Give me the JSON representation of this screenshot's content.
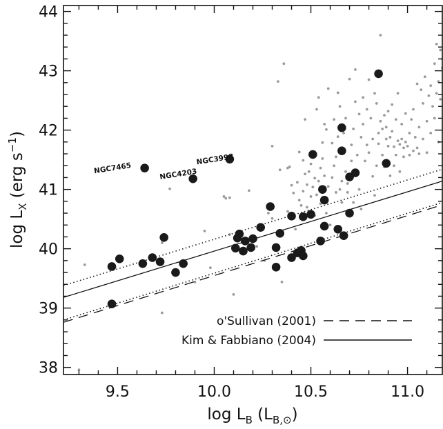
{
  "chart_data": {
    "type": "scatter",
    "xlim": [
      9.22,
      11.18
    ],
    "ylim": [
      37.88,
      44.1
    ],
    "xticks": [
      9.5,
      10.0,
      10.5,
      11.0
    ],
    "xtick_labels": [
      "9.5",
      "10.0",
      "10.5",
      "11.0"
    ],
    "yticks": [
      38,
      39,
      40,
      41,
      42,
      43,
      44
    ],
    "ytick_labels": [
      "38",
      "39",
      "40",
      "41",
      "42",
      "43",
      "44"
    ],
    "xminor_step": 0.1,
    "yminor_step": 0.2,
    "grid": false,
    "xlabel": {
      "base": "log L",
      "sub": "B",
      "tail": " (L",
      "sub2": "B,⊙",
      "close": ")"
    },
    "ylabel": {
      "base": "log L",
      "sub": "X",
      "tail": " (erg s",
      "sup": "−1",
      "close": ")"
    },
    "colors": {
      "main_points": "#1a1a1a",
      "background_points": "#9a9a9a",
      "lines": "#111111"
    },
    "legend_position": "bottom-right",
    "legend": [
      {
        "label": "o'Sullivan (2001)",
        "style": "dashed"
      },
      {
        "label": "Kim & Fabbiano (2004)",
        "style": "solid"
      }
    ],
    "lines": [
      {
        "name": "Kim & Fabbiano (2004)",
        "style": "solid",
        "x": [
          9.22,
          11.18
        ],
        "y": [
          39.18,
          41.14
        ]
      },
      {
        "name": "Kim & Fabbiano (2004) upper",
        "style": "dotted",
        "x": [
          9.22,
          11.18
        ],
        "y": [
          39.38,
          41.34
        ]
      },
      {
        "name": "Kim & Fabbiano (2004) lower",
        "style": "dotted",
        "x": [
          9.22,
          11.18
        ],
        "y": [
          38.8,
          40.78
        ]
      },
      {
        "name": "o'Sullivan (2001)",
        "style": "dashed",
        "x": [
          9.22,
          11.18
        ],
        "y": [
          38.76,
          40.74
        ]
      }
    ],
    "annotations": [
      {
        "text": "NGC7465",
        "x": 9.38,
        "y": 41.27
      },
      {
        "text": "NGC4203",
        "x": 9.72,
        "y": 41.17
      },
      {
        "text": "NGC3998",
        "x": 9.91,
        "y": 41.42
      }
    ],
    "series": [
      {
        "style": "filled-large",
        "points": [
          [
            9.47,
            39.07
          ],
          [
            9.47,
            39.7
          ],
          [
            9.51,
            39.83
          ],
          [
            9.63,
            39.75
          ],
          [
            9.64,
            41.36
          ],
          [
            9.68,
            39.85
          ],
          [
            9.72,
            39.78
          ],
          [
            9.74,
            40.19
          ],
          [
            9.8,
            39.6
          ],
          [
            9.84,
            39.75
          ],
          [
            9.89,
            41.18
          ],
          [
            10.08,
            41.51
          ],
          [
            10.11,
            40.01
          ],
          [
            10.12,
            40.18
          ],
          [
            10.13,
            40.25
          ],
          [
            10.15,
            39.96
          ],
          [
            10.16,
            40.13
          ],
          [
            10.19,
            40.02
          ],
          [
            10.2,
            40.17
          ],
          [
            10.24,
            40.36
          ],
          [
            10.29,
            40.71
          ],
          [
            10.32,
            40.02
          ],
          [
            10.32,
            39.69
          ],
          [
            10.34,
            40.26
          ],
          [
            10.4,
            40.55
          ],
          [
            10.4,
            39.85
          ],
          [
            10.43,
            39.93
          ],
          [
            10.45,
            39.97
          ],
          [
            10.46,
            40.54
          ],
          [
            10.46,
            39.88
          ],
          [
            10.5,
            40.58
          ],
          [
            10.51,
            41.59
          ],
          [
            10.55,
            40.13
          ],
          [
            10.56,
            41.0
          ],
          [
            10.57,
            40.82
          ],
          [
            10.57,
            40.38
          ],
          [
            10.64,
            40.33
          ],
          [
            10.66,
            42.04
          ],
          [
            10.66,
            41.65
          ],
          [
            10.67,
            40.22
          ],
          [
            10.7,
            40.6
          ],
          [
            10.7,
            41.21
          ],
          [
            10.73,
            41.28
          ],
          [
            10.85,
            42.95
          ],
          [
            10.89,
            41.44
          ]
        ]
      },
      {
        "style": "small-grey",
        "points": [
          [
            9.3,
            37.96
          ],
          [
            9.33,
            39.73
          ],
          [
            9.73,
            40.1
          ],
          [
            9.73,
            38.92
          ],
          [
            9.77,
            41.01
          ],
          [
            9.9,
            39.44
          ],
          [
            9.95,
            40.3
          ],
          [
            9.98,
            39.68
          ],
          [
            10.05,
            40.88
          ],
          [
            10.06,
            40.85
          ],
          [
            10.08,
            40.86
          ],
          [
            10.08,
            40.24
          ],
          [
            10.1,
            39.23
          ],
          [
            10.18,
            40.98
          ],
          [
            10.22,
            40.04
          ],
          [
            10.26,
            39.8
          ],
          [
            10.28,
            40.6
          ],
          [
            10.3,
            40.51
          ],
          [
            10.3,
            41.73
          ],
          [
            10.32,
            40.07
          ],
          [
            10.33,
            42.82
          ],
          [
            10.34,
            41.33
          ],
          [
            10.35,
            39.44
          ],
          [
            10.36,
            43.12
          ],
          [
            10.38,
            41.36
          ],
          [
            10.38,
            40.63
          ],
          [
            10.39,
            41.38
          ],
          [
            10.4,
            41.07
          ],
          [
            10.41,
            40.94
          ],
          [
            10.42,
            40.33
          ],
          [
            10.43,
            41.12
          ],
          [
            10.44,
            41.63
          ],
          [
            10.44,
            40.82
          ],
          [
            10.45,
            40.73
          ],
          [
            10.46,
            41.49
          ],
          [
            10.46,
            40.97
          ],
          [
            10.47,
            41.26
          ],
          [
            10.47,
            42.18
          ],
          [
            10.48,
            40.7
          ],
          [
            10.48,
            41.08
          ],
          [
            10.49,
            41.3
          ],
          [
            10.5,
            40.88
          ],
          [
            10.5,
            41.43
          ],
          [
            10.51,
            41.04
          ],
          [
            10.52,
            40.56
          ],
          [
            10.52,
            41.19
          ],
          [
            10.53,
            42.35
          ],
          [
            10.53,
            40.91
          ],
          [
            10.54,
            42.55
          ],
          [
            10.54,
            41.14
          ],
          [
            10.55,
            41.36
          ],
          [
            10.55,
            40.76
          ],
          [
            10.56,
            41.79
          ],
          [
            10.56,
            41.52
          ],
          [
            10.57,
            42.1
          ],
          [
            10.57,
            41.23
          ],
          [
            10.58,
            40.6
          ],
          [
            10.58,
            42.01
          ],
          [
            10.59,
            41.05
          ],
          [
            10.59,
            42.7
          ],
          [
            10.6,
            40.4
          ],
          [
            10.61,
            41.2
          ],
          [
            10.61,
            41.78
          ],
          [
            10.62,
            42.18
          ],
          [
            10.62,
            41.4
          ],
          [
            10.63,
            41.55
          ],
          [
            10.63,
            40.95
          ],
          [
            10.64,
            42.63
          ],
          [
            10.64,
            41.89
          ],
          [
            10.65,
            41.0
          ],
          [
            10.65,
            42.4
          ],
          [
            10.66,
            41.14
          ],
          [
            10.66,
            40.78
          ],
          [
            10.67,
            41.95
          ],
          [
            10.68,
            41.3
          ],
          [
            10.68,
            42.2
          ],
          [
            10.69,
            40.95
          ],
          [
            10.69,
            41.1
          ],
          [
            10.7,
            42.86
          ],
          [
            10.71,
            41.75
          ],
          [
            10.71,
            41.48
          ],
          [
            10.72,
            42.02
          ],
          [
            10.72,
            40.78
          ],
          [
            10.73,
            42.48
          ],
          [
            10.73,
            43.02
          ],
          [
            10.74,
            41.58
          ],
          [
            10.75,
            42.27
          ],
          [
            10.75,
            41.0
          ],
          [
            10.76,
            41.88
          ],
          [
            10.76,
            40.67
          ],
          [
            10.77,
            42.55
          ],
          [
            10.77,
            42.1
          ],
          [
            10.78,
            41.48
          ],
          [
            10.79,
            41.75
          ],
          [
            10.79,
            42.35
          ],
          [
            10.8,
            41.62
          ],
          [
            10.8,
            42.85
          ],
          [
            10.81,
            42.2
          ],
          [
            10.82,
            41.85
          ],
          [
            10.82,
            41.22
          ],
          [
            10.83,
            42.62
          ],
          [
            10.83,
            40.9
          ],
          [
            10.84,
            42.45
          ],
          [
            10.84,
            41.4
          ],
          [
            10.85,
            41.95
          ],
          [
            10.85,
            41.77
          ],
          [
            10.86,
            43.6
          ],
          [
            10.86,
            42.15
          ],
          [
            10.87,
            41.58
          ],
          [
            10.87,
            42.02
          ],
          [
            10.88,
            42.25
          ],
          [
            10.88,
            41.38
          ],
          [
            10.89,
            42.05
          ],
          [
            10.89,
            41.85
          ],
          [
            10.9,
            42.32
          ],
          [
            10.9,
            41.73
          ],
          [
            10.91,
            41.88
          ],
          [
            10.91,
            41.23
          ],
          [
            10.92,
            42.43
          ],
          [
            10.92,
            41.98
          ],
          [
            10.93,
            41.72
          ],
          [
            10.93,
            41.4
          ],
          [
            10.94,
            42.18
          ],
          [
            10.94,
            41.58
          ],
          [
            10.95,
            41.82
          ],
          [
            10.95,
            42.62
          ],
          [
            10.96,
            41.76
          ],
          [
            10.96,
            41.3
          ],
          [
            10.97,
            41.85
          ],
          [
            10.97,
            42.1
          ],
          [
            10.98,
            41.7
          ],
          [
            10.98,
            41.55
          ],
          [
            10.99,
            41.8
          ],
          [
            10.99,
            42.28
          ],
          [
            11.0,
            41.73
          ],
          [
            11.01,
            41.95
          ],
          [
            11.01,
            41.58
          ],
          [
            11.02,
            42.18
          ],
          [
            11.03,
            41.65
          ],
          [
            11.03,
            42.35
          ],
          [
            11.04,
            41.88
          ],
          [
            11.05,
            41.7
          ],
          [
            11.05,
            42.78
          ],
          [
            11.06,
            42.05
          ],
          [
            11.06,
            41.6
          ],
          [
            11.07,
            42.68
          ],
          [
            11.08,
            41.85
          ],
          [
            11.08,
            42.45
          ],
          [
            11.09,
            42.9
          ],
          [
            11.1,
            42.15
          ],
          [
            11.1,
            41.62
          ],
          [
            11.11,
            42.58
          ],
          [
            11.12,
            42.75
          ],
          [
            11.12,
            41.95
          ],
          [
            11.13,
            42.4
          ],
          [
            11.14,
            43.12
          ],
          [
            11.14,
            42.2
          ],
          [
            11.15,
            43.45
          ],
          [
            11.15,
            42.62
          ],
          [
            11.16,
            41.8
          ],
          [
            11.16,
            42.82
          ],
          [
            11.17,
            43.35
          ],
          [
            11.17,
            42.52
          ],
          [
            11.18,
            43.05
          ],
          [
            11.18,
            43.2
          ]
        ]
      }
    ]
  }
}
